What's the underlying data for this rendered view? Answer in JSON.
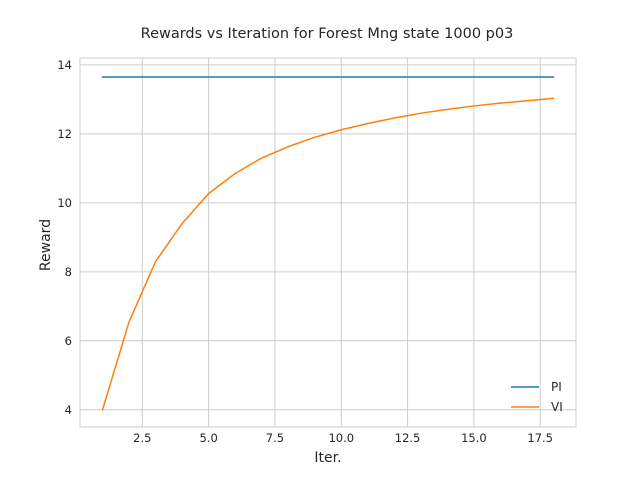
{
  "chart_data": {
    "type": "line",
    "title": "Rewards vs Iteration for Forest Mng state 1000 p03",
    "xlabel": "Iter.",
    "ylabel": "Reward",
    "xlim": [
      0.15,
      18.85
    ],
    "ylim": [
      3.5,
      14.2
    ],
    "xticks": [
      2.5,
      5.0,
      7.5,
      10.0,
      12.5,
      15.0,
      17.5
    ],
    "xtick_labels": [
      "2.5",
      "5.0",
      "7.5",
      "10.0",
      "12.5",
      "15.0",
      "17.5"
    ],
    "yticks": [
      4,
      6,
      8,
      10,
      12,
      14
    ],
    "ytick_labels": [
      "4",
      "6",
      "8",
      "10",
      "12",
      "14"
    ],
    "grid": true,
    "legend_position": "lower-right",
    "series": [
      {
        "name": "PI",
        "color": "#1f77b4",
        "x": [
          1,
          18
        ],
        "y": [
          13.65,
          13.65
        ]
      },
      {
        "name": "VI",
        "color": "#ff7f0e",
        "x": [
          1,
          2,
          3,
          4,
          5,
          6,
          7,
          8,
          9,
          10,
          11,
          12,
          13,
          14,
          15,
          16,
          17,
          18
        ],
        "y": [
          4.0,
          6.55,
          8.3,
          9.4,
          10.27,
          10.85,
          11.3,
          11.63,
          11.9,
          12.12,
          12.3,
          12.46,
          12.6,
          12.71,
          12.81,
          12.89,
          12.96,
          13.03
        ]
      }
    ]
  }
}
